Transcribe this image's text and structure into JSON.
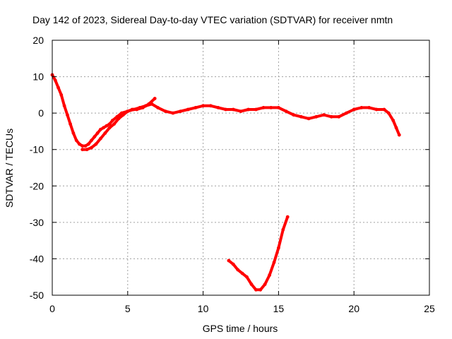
{
  "chart_data": {
    "type": "scatter",
    "title": "Day 142 of 2023, Sidereal Day-to-day VTEC variation (SDTVAR) for receiver nmtn",
    "xlabel": "GPS time / hours",
    "ylabel": "SDTVAR / TECUs",
    "xlim": [
      0,
      25
    ],
    "ylim": [
      -50,
      20
    ],
    "xticks": [
      0,
      5,
      10,
      15,
      20,
      25
    ],
    "yticks": [
      -50,
      -40,
      -30,
      -20,
      -10,
      0,
      10,
      20
    ],
    "grid": true,
    "color": "#ff0000",
    "series": [
      {
        "name": "main",
        "x": [
          0.0,
          0.2,
          0.4,
          0.6,
          0.8,
          1.0,
          1.2,
          1.4,
          1.6,
          1.8,
          2.0,
          2.2,
          2.4,
          2.6,
          2.8,
          3.0,
          3.2,
          3.4,
          3.6,
          3.8,
          4.0,
          4.3,
          4.6,
          5.0,
          5.4,
          5.8,
          6.2,
          6.6,
          7.0,
          7.5,
          8.0,
          8.5,
          9.0,
          9.5,
          10.0,
          10.5,
          11.0,
          11.5,
          12.0,
          12.5,
          13.0,
          13.5,
          14.0,
          14.5,
          15.0,
          15.5,
          16.0,
          16.5,
          17.0,
          17.5,
          18.0,
          18.5,
          19.0,
          19.5,
          20.0,
          20.5,
          21.0,
          21.5,
          22.0,
          22.3,
          22.6,
          22.8,
          23.0
        ],
        "y": [
          10.5,
          9,
          7,
          5,
          2,
          -0.5,
          -3,
          -5.5,
          -7.5,
          -8.5,
          -9,
          -9,
          -8.5,
          -7.5,
          -6.5,
          -5.5,
          -4.5,
          -4,
          -3.5,
          -3,
          -2,
          -1,
          0,
          0.5,
          1,
          1.5,
          2,
          2.5,
          1.5,
          0.5,
          0,
          0.5,
          1,
          1.5,
          2,
          2,
          1.5,
          1,
          1,
          0.5,
          1,
          1,
          1.5,
          1.5,
          1.5,
          0.5,
          -0.5,
          -1,
          -1.5,
          -1,
          -0.5,
          -1,
          -1,
          0,
          1,
          1.5,
          1.5,
          1,
          1,
          0,
          -2,
          -4,
          -6
        ]
      },
      {
        "name": "branch",
        "x": [
          2.0,
          2.3,
          2.6,
          2.9,
          3.2,
          3.5,
          3.8,
          4.1,
          4.4,
          4.7,
          5.0,
          5.3,
          5.6,
          6.0,
          6.4,
          6.8
        ],
        "y": [
          -10,
          -10,
          -9.5,
          -8.5,
          -7,
          -5.5,
          -4,
          -3,
          -1.5,
          -0.5,
          0.5,
          1,
          1,
          1.5,
          2.5,
          4
        ]
      },
      {
        "name": "dip",
        "x": [
          11.7,
          12.0,
          12.3,
          12.6,
          12.9,
          13.2,
          13.5,
          13.8,
          14.1,
          14.4,
          14.7,
          15.0,
          15.3,
          15.6
        ],
        "y": [
          -40.5,
          -41.5,
          -43,
          -44,
          -45,
          -47,
          -48.5,
          -48.5,
          -47,
          -44.5,
          -41,
          -37,
          -32,
          -28.5
        ]
      }
    ]
  }
}
